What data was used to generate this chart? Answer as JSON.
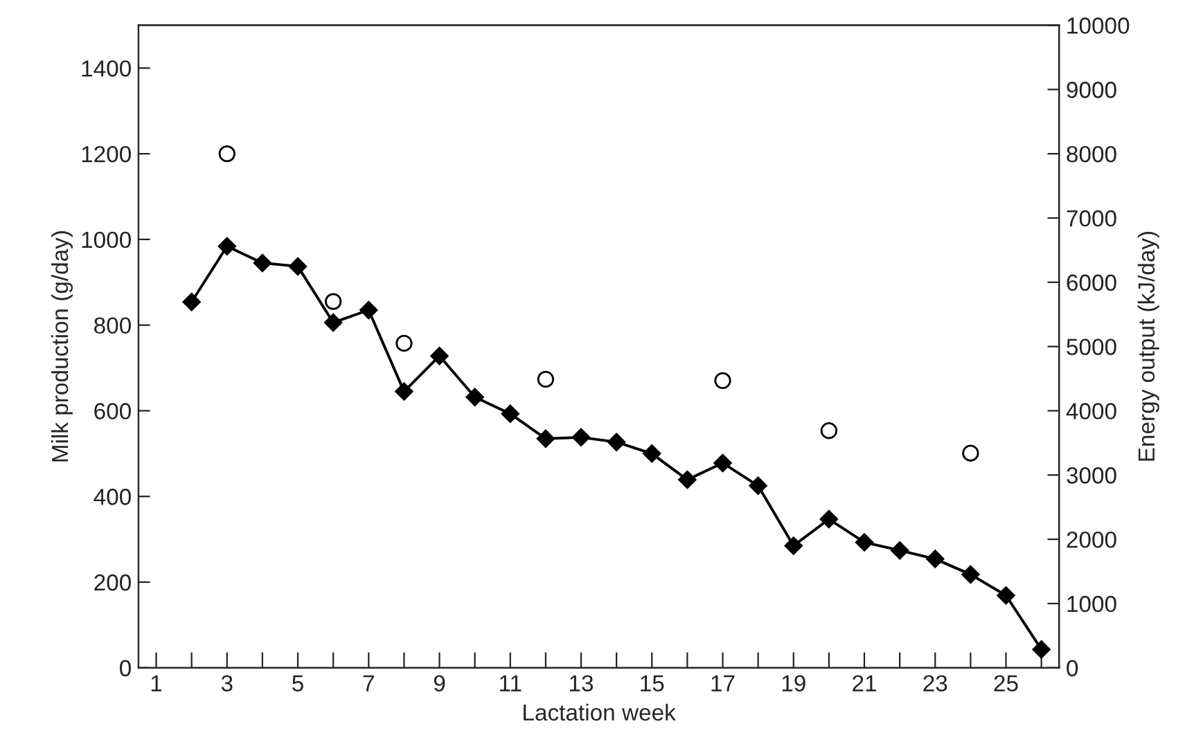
{
  "chart_data": {
    "type": "line",
    "xlabel": "Lactation week",
    "ylabel": "Milk production (g/day)",
    "y2label": "Energy output (kJ/day)",
    "x": [
      2,
      3,
      4,
      5,
      6,
      7,
      8,
      9,
      10,
      11,
      12,
      13,
      14,
      15,
      16,
      17,
      18,
      19,
      20,
      21,
      22,
      23,
      24,
      25,
      26
    ],
    "series": [
      {
        "color": "#000000",
        "marker": "diamond",
        "line_style": "solid",
        "values": [
          854,
          984,
          945,
          937,
          806,
          835,
          645,
          728,
          632,
          593,
          535,
          538,
          527,
          500,
          439,
          478,
          425,
          285,
          347,
          293,
          274,
          254,
          218,
          169,
          43
        ]
      },
      {
        "type": "scatter",
        "axis": "y2",
        "color": "#000000",
        "marker": "circle",
        "x": [
          3,
          6,
          8,
          12,
          17,
          20,
          24
        ],
        "values": [
          8000,
          5700,
          5050,
          4490,
          4470,
          3690,
          3340
        ]
      }
    ],
    "xlim": [
      0.5,
      26.5
    ],
    "xticks": [
      1,
      {
        "value": 2,
        "label": null
      },
      3,
      {
        "value": 4,
        "label": null
      },
      5,
      {
        "value": 6,
        "label": null
      },
      7,
      {
        "value": 8,
        "label": null
      },
      9,
      {
        "value": 10,
        "label": null
      },
      11,
      {
        "value": 12,
        "label": null
      },
      13,
      {
        "value": 14,
        "label": null
      },
      15,
      {
        "value": 16,
        "label": null
      },
      17,
      {
        "value": 18,
        "label": null
      },
      19,
      {
        "value": 20,
        "label": null
      },
      21,
      {
        "value": 22,
        "label": null
      },
      23,
      {
        "value": 24,
        "label": null
      },
      25,
      {
        "value": 26,
        "label": null
      }
    ],
    "ylim": [
      0,
      1500
    ],
    "yticks": [
      0,
      200,
      400,
      600,
      800,
      1000,
      1200,
      1400
    ],
    "y2lim": [
      0,
      10000
    ],
    "y2ticks": [
      0,
      1000,
      2000,
      3000,
      4000,
      5000,
      6000,
      7000,
      8000,
      9000,
      10000
    ],
    "grid": false,
    "legend": false
  }
}
